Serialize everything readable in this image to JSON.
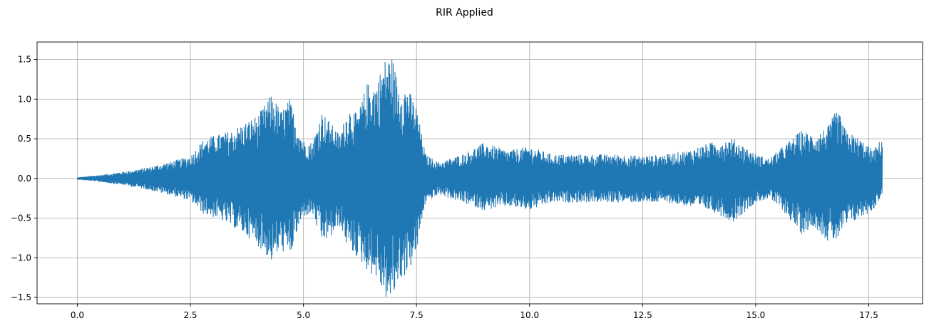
{
  "chart_data": {
    "type": "line",
    "title": "RIR Applied",
    "xlabel": "",
    "ylabel": "",
    "xlim": [
      -0.89,
      18.69
    ],
    "ylim": [
      -1.58,
      1.72
    ],
    "grid": true,
    "legend": null,
    "series_color": "#1f77b4",
    "xticks": [
      0.0,
      2.5,
      5.0,
      7.5,
      10.0,
      12.5,
      15.0,
      17.5
    ],
    "xtick_labels": [
      "0.0",
      "2.5",
      "5.0",
      "7.5",
      "10.0",
      "12.5",
      "15.0",
      "17.5"
    ],
    "yticks": [
      -1.5,
      -1.0,
      -0.5,
      0.0,
      0.5,
      1.0,
      1.5
    ],
    "ytick_labels": [
      "−1.5",
      "−1.0",
      "−0.5",
      "0.0",
      "0.5",
      "1.0",
      "1.5"
    ],
    "series": [
      {
        "x": [
          0.0,
          0.5,
          1.0,
          1.5,
          2.0,
          2.5,
          2.8,
          3.1,
          3.4,
          3.7,
          4.0,
          4.3,
          4.5,
          4.7,
          4.85,
          5.0,
          5.2,
          5.4,
          5.6,
          5.8,
          6.0,
          6.2,
          6.4,
          6.6,
          6.8,
          6.95,
          7.1,
          7.3,
          7.5,
          7.6,
          7.7,
          7.85,
          8.0,
          8.5,
          9.0,
          9.5,
          10.0,
          10.5,
          11.0,
          11.5,
          12.0,
          12.5,
          13.0,
          13.5,
          14.0,
          14.5,
          15.0,
          15.3,
          15.6,
          16.0,
          16.3,
          16.6,
          16.8,
          17.0,
          17.3,
          17.6,
          17.8
        ],
        "upper": [
          0.01,
          0.04,
          0.08,
          0.13,
          0.2,
          0.28,
          0.5,
          0.55,
          0.6,
          0.7,
          0.8,
          1.07,
          0.85,
          1.0,
          0.7,
          0.48,
          0.45,
          0.85,
          0.7,
          0.55,
          0.9,
          0.8,
          1.2,
          1.2,
          1.5,
          1.56,
          1.2,
          1.15,
          0.9,
          0.6,
          0.3,
          0.25,
          0.2,
          0.3,
          0.45,
          0.35,
          0.4,
          0.3,
          0.3,
          0.3,
          0.3,
          0.28,
          0.3,
          0.35,
          0.45,
          0.5,
          0.3,
          0.25,
          0.4,
          0.6,
          0.55,
          0.65,
          0.88,
          0.6,
          0.5,
          0.35,
          0.52
        ],
        "lower": [
          -0.01,
          -0.04,
          -0.08,
          -0.13,
          -0.2,
          -0.28,
          -0.45,
          -0.5,
          -0.6,
          -0.7,
          -0.85,
          -1.05,
          -0.9,
          -1.0,
          -0.7,
          -0.48,
          -0.45,
          -0.8,
          -0.75,
          -0.6,
          -0.9,
          -1.0,
          -1.15,
          -1.25,
          -1.5,
          -1.58,
          -1.3,
          -1.2,
          -0.95,
          -0.6,
          -0.3,
          -0.25,
          -0.2,
          -0.3,
          -0.4,
          -0.35,
          -0.4,
          -0.3,
          -0.3,
          -0.3,
          -0.3,
          -0.3,
          -0.3,
          -0.35,
          -0.4,
          -0.55,
          -0.3,
          -0.25,
          -0.4,
          -0.7,
          -0.6,
          -0.8,
          -0.78,
          -0.6,
          -0.5,
          -0.4,
          -0.2
        ]
      }
    ]
  }
}
